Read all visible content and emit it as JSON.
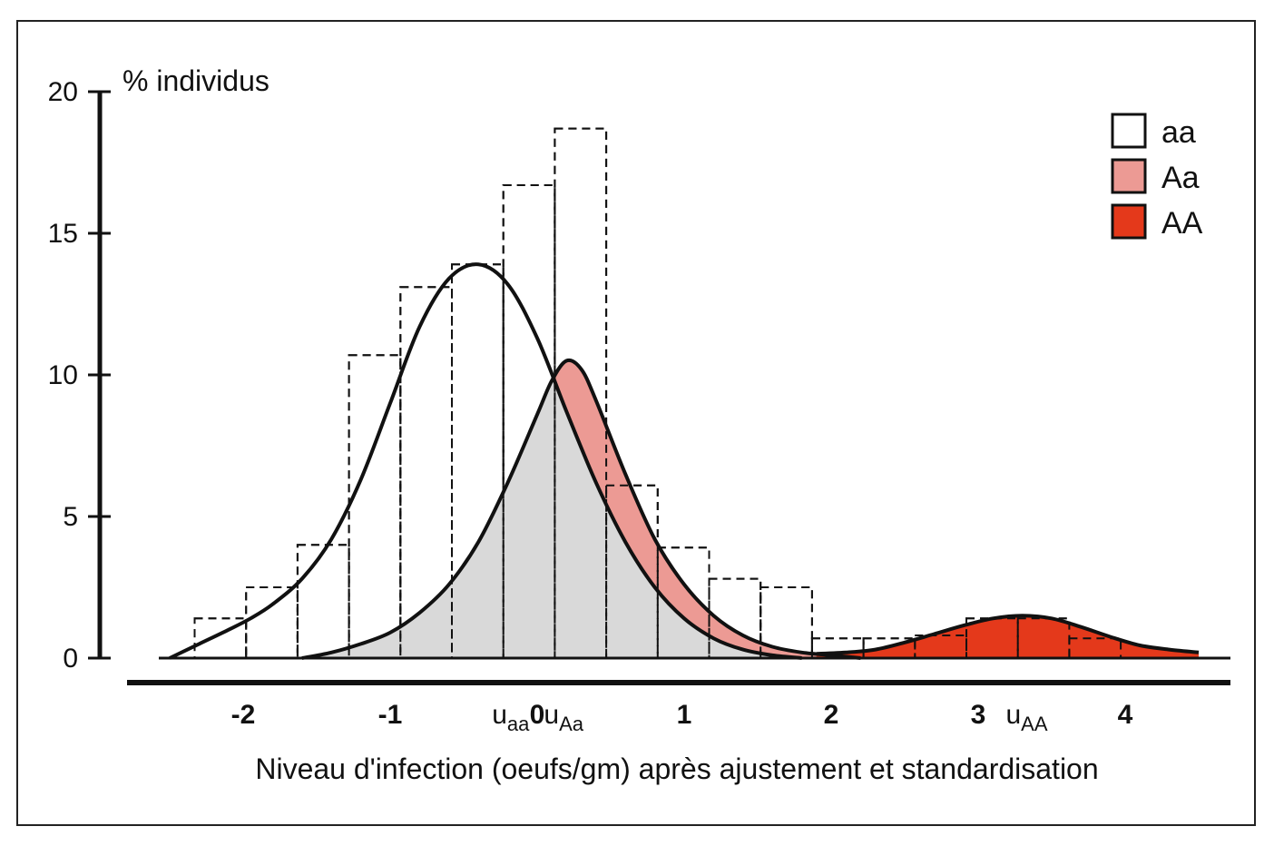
{
  "chart_data": {
    "type": "histogram_with_density_curves",
    "ylabel": "% individus",
    "xlabel": "Niveau d'infection (oeufs/gm) après ajustement et standardisation",
    "ylim": [
      0,
      20
    ],
    "xlim": [
      -2.5,
      4.5
    ],
    "yticks": [
      "0",
      "5",
      "10",
      "15",
      "20"
    ],
    "xticks": [
      {
        "value": -2,
        "label": "-2"
      },
      {
        "value": -1,
        "label": "-1"
      },
      {
        "value": 0,
        "label": "0"
      },
      {
        "value": 1,
        "label": "1"
      },
      {
        "value": 2,
        "label": "2"
      },
      {
        "value": 3,
        "label": "3"
      },
      {
        "value": 4,
        "label": "4"
      }
    ],
    "means": [
      {
        "name": "uaa",
        "main": "u",
        "sub": "aa",
        "value": -0.18
      },
      {
        "name": "uAa",
        "main": "u",
        "sub": "Aa",
        "value": 0.18
      },
      {
        "name": "uAA",
        "main": "u",
        "sub": "AA",
        "value": 3.33
      }
    ],
    "histogram": {
      "bin_width": 0.35,
      "bins": [
        {
          "x0": -2.33,
          "value": 1.4
        },
        {
          "x0": -1.98,
          "value": 2.5
        },
        {
          "x0": -1.63,
          "value": 4.0
        },
        {
          "x0": -1.28,
          "value": 10.7
        },
        {
          "x0": -0.93,
          "value": 13.1
        },
        {
          "x0": -0.58,
          "value": 13.9
        },
        {
          "x0": -0.23,
          "value": 16.7
        },
        {
          "x0": 0.12,
          "value": 18.7
        },
        {
          "x0": 0.47,
          "value": 6.1
        },
        {
          "x0": 0.82,
          "value": 3.9
        },
        {
          "x0": 1.17,
          "value": 2.8
        },
        {
          "x0": 1.52,
          "value": 2.5
        },
        {
          "x0": 1.87,
          "value": 0.7
        },
        {
          "x0": 2.22,
          "value": 0.7
        },
        {
          "x0": 2.57,
          "value": 0.8
        },
        {
          "x0": 2.92,
          "value": 1.4
        },
        {
          "x0": 3.27,
          "value": 1.4
        },
        {
          "x0": 3.62,
          "value": 0.7
        }
      ]
    },
    "series": [
      {
        "name": "aa",
        "color": "#ffffff",
        "points": [
          [
            -2.5,
            0
          ],
          [
            -2.3,
            0.5
          ],
          [
            -2.1,
            1.0
          ],
          [
            -1.95,
            1.4
          ],
          [
            -1.8,
            1.9
          ],
          [
            -1.6,
            2.8
          ],
          [
            -1.4,
            4.2
          ],
          [
            -1.2,
            6.3
          ],
          [
            -1.0,
            9.0
          ],
          [
            -0.8,
            11.7
          ],
          [
            -0.6,
            13.4
          ],
          [
            -0.4,
            13.9
          ],
          [
            -0.2,
            13.2
          ],
          [
            0.0,
            11.3
          ],
          [
            0.2,
            8.7
          ],
          [
            0.4,
            6.2
          ],
          [
            0.6,
            4.1
          ],
          [
            0.8,
            2.5
          ],
          [
            1.0,
            1.4
          ],
          [
            1.2,
            0.7
          ],
          [
            1.4,
            0.3
          ],
          [
            1.6,
            0.1
          ],
          [
            1.8,
            0
          ]
        ]
      },
      {
        "name": "Aa",
        "color": "#ec9a94",
        "points": [
          [
            -1.6,
            0
          ],
          [
            -1.4,
            0.2
          ],
          [
            -1.2,
            0.5
          ],
          [
            -1.0,
            0.9
          ],
          [
            -0.8,
            1.6
          ],
          [
            -0.6,
            2.6
          ],
          [
            -0.4,
            4.1
          ],
          [
            -0.2,
            6.2
          ],
          [
            0.0,
            8.6
          ],
          [
            0.1,
            9.8
          ],
          [
            0.2,
            10.5
          ],
          [
            0.3,
            10.2
          ],
          [
            0.4,
            9.1
          ],
          [
            0.6,
            6.5
          ],
          [
            0.8,
            4.2
          ],
          [
            1.0,
            2.6
          ],
          [
            1.2,
            1.5
          ],
          [
            1.4,
            0.8
          ],
          [
            1.6,
            0.4
          ],
          [
            1.8,
            0.2
          ],
          [
            2.0,
            0.1
          ],
          [
            2.2,
            0
          ]
        ]
      },
      {
        "name": "AA",
        "color": "#e4391b",
        "points": [
          [
            1.9,
            0.15
          ],
          [
            2.1,
            0.2
          ],
          [
            2.3,
            0.3
          ],
          [
            2.5,
            0.55
          ],
          [
            2.7,
            0.85
          ],
          [
            2.9,
            1.15
          ],
          [
            3.1,
            1.4
          ],
          [
            3.3,
            1.5
          ],
          [
            3.5,
            1.4
          ],
          [
            3.7,
            1.1
          ],
          [
            3.9,
            0.75
          ],
          [
            4.1,
            0.45
          ],
          [
            4.3,
            0.3
          ],
          [
            4.5,
            0.2
          ]
        ]
      }
    ],
    "legend": {
      "position": "top-right",
      "items": [
        {
          "label": "aa",
          "color": "#ffffff"
        },
        {
          "label": "Aa",
          "color": "#ec9a94"
        },
        {
          "label": "AA",
          "color": "#e4391b"
        }
      ]
    },
    "overlap_fill_color": "#d9d9d9"
  }
}
